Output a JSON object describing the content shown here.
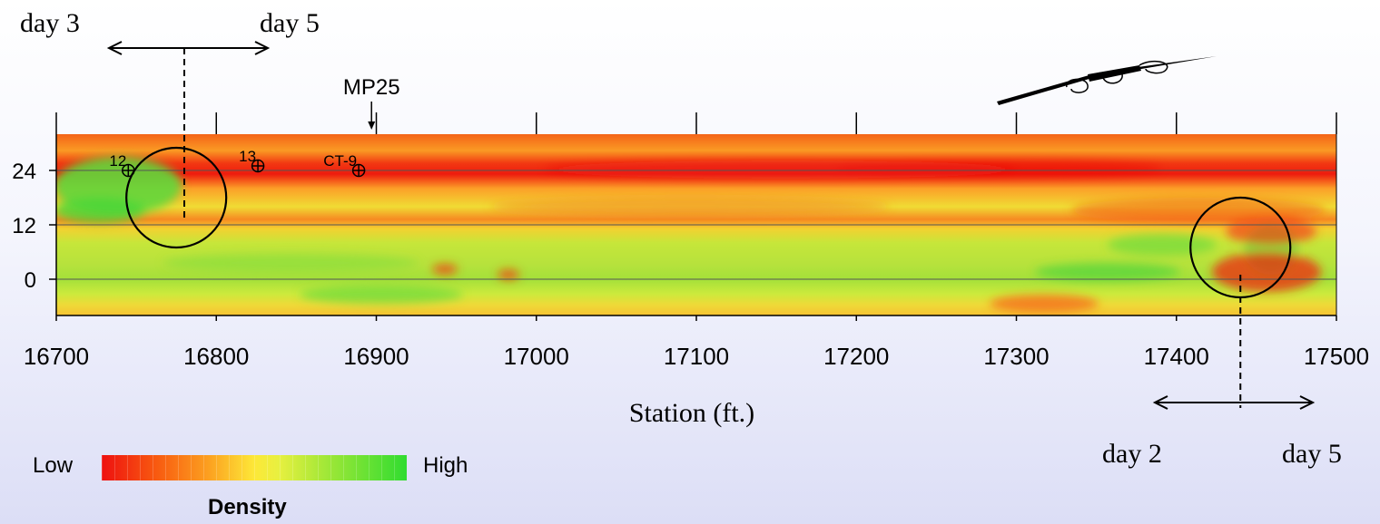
{
  "chart_data": {
    "type": "heatmap",
    "xlabel": "Station (ft.)",
    "x_ticks": [
      16700,
      16800,
      16900,
      17000,
      17100,
      17200,
      17300,
      17400,
      17500
    ],
    "xlim": [
      16700,
      17500
    ],
    "y_ticks": [
      24,
      12,
      0
    ],
    "ylim": [
      -8,
      32
    ],
    "colorscale": {
      "label": "Density",
      "low_label": "Low",
      "high_label": "High",
      "colors": [
        "#ee1010",
        "#f85a10",
        "#fca020",
        "#fde838",
        "#a8e838",
        "#30dc30"
      ]
    },
    "markers": [
      {
        "label": "12",
        "x": 16745,
        "y": 24
      },
      {
        "label": "13",
        "x": 16826,
        "y": 25
      },
      {
        "label": "CT-9",
        "x": 16889,
        "y": 24
      }
    ],
    "milepost": {
      "label": "MP25",
      "x": 16897
    },
    "circles": [
      {
        "cx": 16775,
        "cy": 18
      },
      {
        "cx": 17440,
        "cy": 7
      }
    ],
    "ranges": [
      {
        "from_label": "day 3",
        "to_label": "day 5",
        "x": 16780,
        "position": "top"
      },
      {
        "from_label": "day 2",
        "to_label": "day 5",
        "x": 17440,
        "position": "bottom"
      }
    ]
  }
}
